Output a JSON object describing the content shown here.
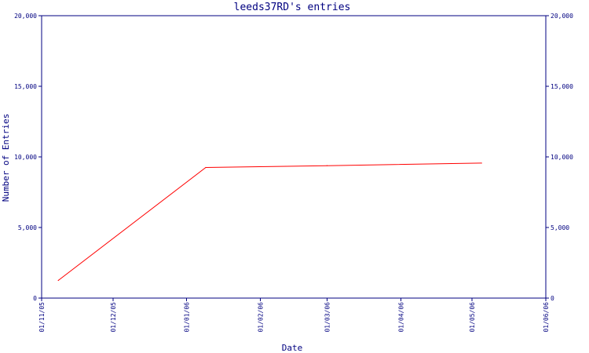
{
  "chart_data": {
    "type": "line",
    "title": "leeds37RD's entries",
    "xlabel": "Date",
    "ylabel": "Number of Entries",
    "ylim": [
      0,
      20000
    ],
    "yticks": [
      0,
      5000,
      10000,
      15000,
      20000
    ],
    "ytick_labels": [
      "0",
      "5,000",
      "10,000",
      "15,000",
      "20,000"
    ],
    "xlim": [
      "2005-11-01",
      "2006-06-01"
    ],
    "xtick_labels": [
      "01/11/05",
      "01/12/05",
      "01/01/06",
      "01/02/06",
      "01/03/06",
      "01/04/06",
      "01/05/06",
      "01/06/06"
    ],
    "xtick_dates": [
      "2005-11-01",
      "2005-12-01",
      "2006-01-01",
      "2006-02-01",
      "2006-03-01",
      "2006-04-01",
      "2006-05-01",
      "2006-06-01"
    ],
    "series": [
      {
        "color": "#ff0000",
        "points": [
          {
            "x": "2005-11-08",
            "y": 1250
          },
          {
            "x": "2006-01-09",
            "y": 9250
          },
          {
            "x": "2006-03-01",
            "y": 9380
          },
          {
            "x": "2006-05-05",
            "y": 9560
          }
        ]
      }
    ],
    "grid": false,
    "axis_color": "#000080",
    "right_axis_mirrors_left": true
  }
}
